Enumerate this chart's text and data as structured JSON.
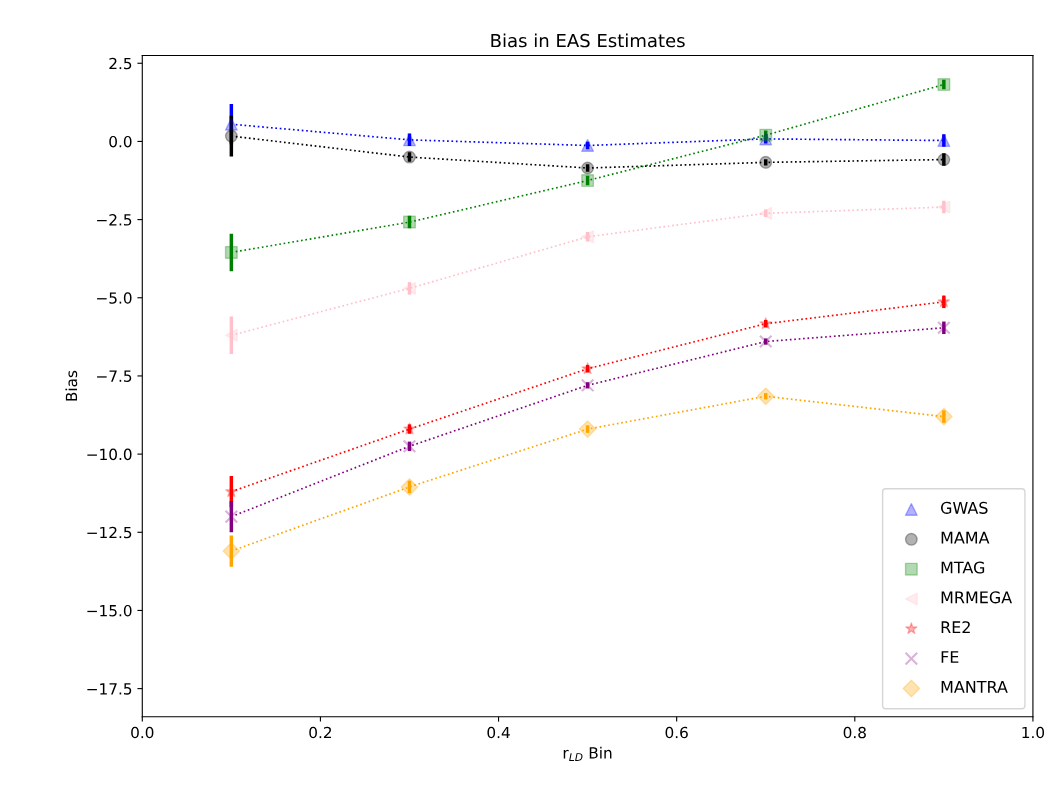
{
  "chart_data": {
    "type": "line",
    "title": "Bias in EAS Estimates",
    "xlabel": "r$_{LD}$ Bin",
    "ylabel": "Bias",
    "x": [
      0.1,
      0.3,
      0.5,
      0.7,
      0.9
    ],
    "xlim": [
      0,
      1
    ],
    "xticks": [
      {
        "value": 0,
        "label": "0.0"
      },
      0.2,
      0.4,
      0.6,
      0.8,
      {
        "value": 1,
        "label": "1.0"
      }
    ],
    "ylim": [
      -18.4,
      2.75
    ],
    "yticks": [
      2.5,
      {
        "value": 0,
        "label": "0.0"
      },
      {
        "value": -2.5,
        "label": "−2.5"
      },
      {
        "value": -5,
        "label": "−5.0"
      },
      {
        "value": -7.5,
        "label": "−7.5"
      },
      {
        "value": -10,
        "label": "−10.0"
      },
      {
        "value": -12.5,
        "label": "−12.5"
      },
      {
        "value": -15,
        "label": "−15.0"
      },
      {
        "value": -17.5,
        "label": "−17.5"
      }
    ],
    "grid": false,
    "legend": "bottom right",
    "line_style": "dotted",
    "series": [
      {
        "name": "GWAS",
        "color": "#0000ff",
        "marker": "triangle",
        "values": [
          0.55,
          0.05,
          -0.13,
          0.08,
          0.03
        ],
        "errors": [
          0.65,
          0.2,
          0.12,
          0.15,
          0.2
        ]
      },
      {
        "name": "MAMA",
        "color": "#000000",
        "marker": "circle",
        "values": [
          0.17,
          -0.5,
          -0.85,
          -0.67,
          -0.58
        ],
        "errors": [
          0.65,
          0.15,
          0.12,
          0.1,
          0.2
        ]
      },
      {
        "name": "MTAG",
        "color": "#008000",
        "marker": "square",
        "values": [
          -3.55,
          -2.58,
          -1.25,
          0.2,
          1.82
        ],
        "errors": [
          0.6,
          0.2,
          0.15,
          0.15,
          0.15
        ]
      },
      {
        "name": "MRMEGA",
        "color": "#ffc0cb",
        "marker": "triangle_left",
        "values": [
          -6.2,
          -4.7,
          -3.05,
          -2.3,
          -2.1
        ],
        "errors": [
          0.6,
          0.2,
          0.15,
          0.12,
          0.2
        ]
      },
      {
        "name": "RE2",
        "color": "#ff0000",
        "marker": "star",
        "values": [
          -11.2,
          -9.2,
          -7.27,
          -5.83,
          -5.13
        ],
        "errors": [
          0.5,
          0.15,
          0.12,
          0.12,
          0.2
        ]
      },
      {
        "name": "FE",
        "color": "#800080",
        "marker": "cross",
        "values": [
          -12.0,
          -9.75,
          -7.8,
          -6.4,
          -5.96
        ],
        "errors": [
          0.5,
          0.15,
          0.1,
          0.1,
          0.2
        ]
      },
      {
        "name": "MANTRA",
        "color": "#ffa500",
        "marker": "diamond",
        "values": [
          -13.1,
          -11.05,
          -9.2,
          -8.15,
          -8.8
        ],
        "errors": [
          0.5,
          0.2,
          0.12,
          0.1,
          0.2
        ]
      }
    ]
  }
}
